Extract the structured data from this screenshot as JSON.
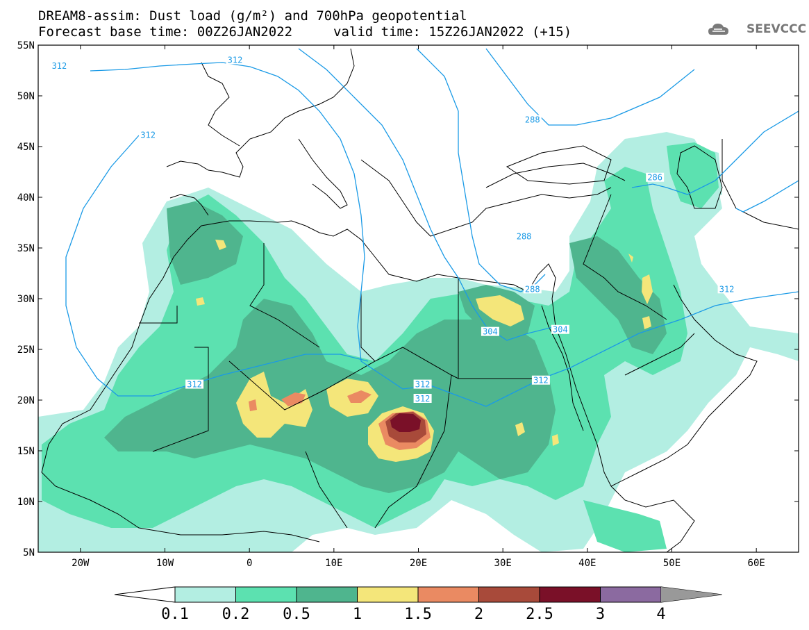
{
  "title": {
    "line1": "DREAM8-assim: Dust load (g/m²) and 700hPa geopotential",
    "line2": "Forecast base time: 00Z26JAN2022",
    "valid": "valid time: 15Z26JAN2022 (+15)"
  },
  "logo": {
    "text": "SEEVCCC",
    "icon": "cloud-logo-icon"
  },
  "axes": {
    "lat_labels": [
      "55N",
      "50N",
      "45N",
      "40N",
      "35N",
      "30N",
      "25N",
      "20N",
      "15N",
      "10N",
      "5N"
    ],
    "lat_values": [
      55,
      50,
      45,
      40,
      35,
      30,
      25,
      20,
      15,
      10,
      5
    ],
    "lon_labels": [
      "20W",
      "10W",
      "0",
      "10E",
      "20E",
      "30E",
      "40E",
      "50E",
      "60E"
    ],
    "lon_values": [
      -20,
      -10,
      0,
      10,
      20,
      30,
      40,
      50,
      60
    ],
    "lon_range": [
      -25,
      65
    ],
    "lat_range": [
      5,
      55
    ]
  },
  "contour_labels": [
    {
      "text": "312",
      "lon": -22.5,
      "lat": 52.8
    },
    {
      "text": "312",
      "lon": -1.7,
      "lat": 53.4
    },
    {
      "text": "312",
      "lon": -12,
      "lat": 46
    },
    {
      "text": "288",
      "lon": 33.5,
      "lat": 47.5
    },
    {
      "text": "286",
      "lon": 48,
      "lat": 41.8
    },
    {
      "text": "288",
      "lon": 32.5,
      "lat": 36
    },
    {
      "text": "288",
      "lon": 33.5,
      "lat": 30.8
    },
    {
      "text": "312",
      "lon": 56.5,
      "lat": 30.8
    },
    {
      "text": "304",
      "lon": 28.5,
      "lat": 26.6
    },
    {
      "text": "304",
      "lon": 36.8,
      "lat": 26.8
    },
    {
      "text": "312",
      "lon": -6.5,
      "lat": 21.4
    },
    {
      "text": "312",
      "lon": 20.5,
      "lat": 21.4
    },
    {
      "text": "312",
      "lon": 20.5,
      "lat": 20.0
    },
    {
      "text": "312",
      "lon": 34.5,
      "lat": 21.8
    }
  ],
  "colorbar": {
    "labels": [
      "0.1",
      "0.2",
      "0.5",
      "1",
      "1.5",
      "2",
      "2.5",
      "3",
      "4"
    ],
    "colors": [
      "#b3eee2",
      "#5ce1b0",
      "#4fb58e",
      "#f4e67a",
      "#ea8a62",
      "#a84a3a",
      "#7a1028",
      "#8b6aa0",
      "#999999"
    ],
    "left_arrow_color": "#ffffff"
  },
  "map": {
    "ocean": "#ffffff",
    "contour_color": "#1a9ae6",
    "border_color": "#000000"
  }
}
